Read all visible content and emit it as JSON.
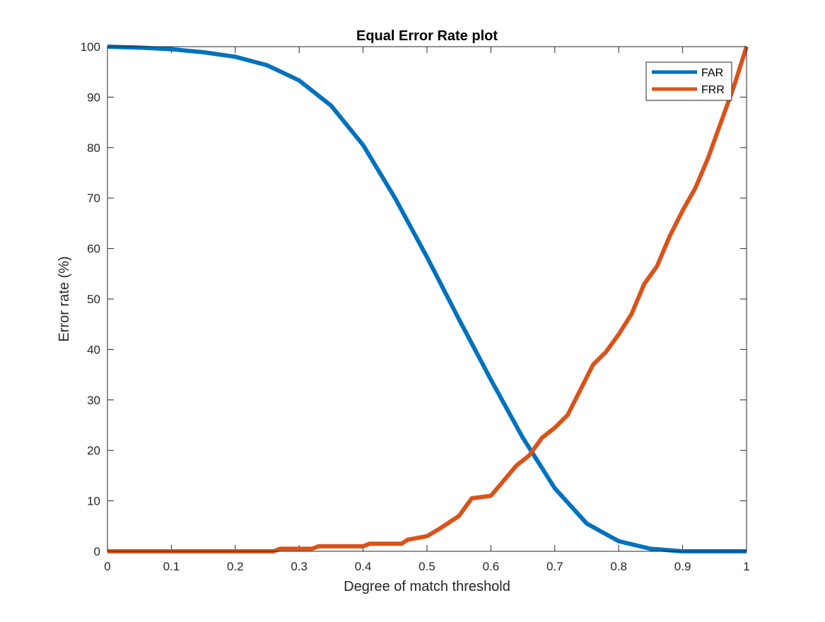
{
  "chart_data": {
    "type": "line",
    "title": "Equal Error Rate plot",
    "xlabel": "Degree of match threshold",
    "ylabel": "Error rate (%)",
    "xlim": [
      0,
      1
    ],
    "ylim": [
      0,
      100
    ],
    "xticks": [
      0,
      0.1,
      0.2,
      0.3,
      0.4,
      0.5,
      0.6,
      0.7,
      0.8,
      0.9,
      1
    ],
    "xtick_labels": [
      "0",
      "0.1",
      "0.2",
      "0.3",
      "0.4",
      "0.5",
      "0.6",
      "0.7",
      "0.8",
      "0.9",
      "1"
    ],
    "yticks": [
      0,
      10,
      20,
      30,
      40,
      50,
      60,
      70,
      80,
      90,
      100
    ],
    "ytick_labels": [
      "0",
      "10",
      "20",
      "30",
      "40",
      "50",
      "60",
      "70",
      "80",
      "90",
      "100"
    ],
    "grid": false,
    "legend_position": "top-right",
    "series": [
      {
        "name": "FAR",
        "color": "#0072BD",
        "x": [
          0,
          0.05,
          0.1,
          0.15,
          0.2,
          0.25,
          0.3,
          0.35,
          0.4,
          0.45,
          0.5,
          0.55,
          0.6,
          0.65,
          0.7,
          0.75,
          0.8,
          0.85,
          0.9,
          0.95,
          1
        ],
        "y": [
          100,
          99.8,
          99.5,
          98.9,
          98,
          96.3,
          93.3,
          88.3,
          80.5,
          70,
          58.3,
          46,
          34,
          22.5,
          12.5,
          5.5,
          2,
          0.5,
          0,
          0,
          0
        ]
      },
      {
        "name": "FRR",
        "color": "#D95319",
        "x": [
          0,
          0.1,
          0.2,
          0.26,
          0.27,
          0.32,
          0.33,
          0.4,
          0.41,
          0.46,
          0.47,
          0.5,
          0.52,
          0.55,
          0.57,
          0.6,
          0.62,
          0.64,
          0.66,
          0.68,
          0.7,
          0.72,
          0.74,
          0.76,
          0.78,
          0.8,
          0.82,
          0.84,
          0.86,
          0.88,
          0.9,
          0.92,
          0.94,
          0.96,
          0.98,
          1
        ],
        "y": [
          0,
          0,
          0,
          0,
          0.5,
          0.5,
          1,
          1,
          1.5,
          1.5,
          2.3,
          3,
          4.5,
          7,
          10.5,
          11,
          14,
          17,
          19,
          22.5,
          24.5,
          27,
          32,
          37,
          39.5,
          43,
          47,
          53,
          56.5,
          62.5,
          67.5,
          72,
          78,
          85,
          92,
          100
        ]
      }
    ]
  }
}
